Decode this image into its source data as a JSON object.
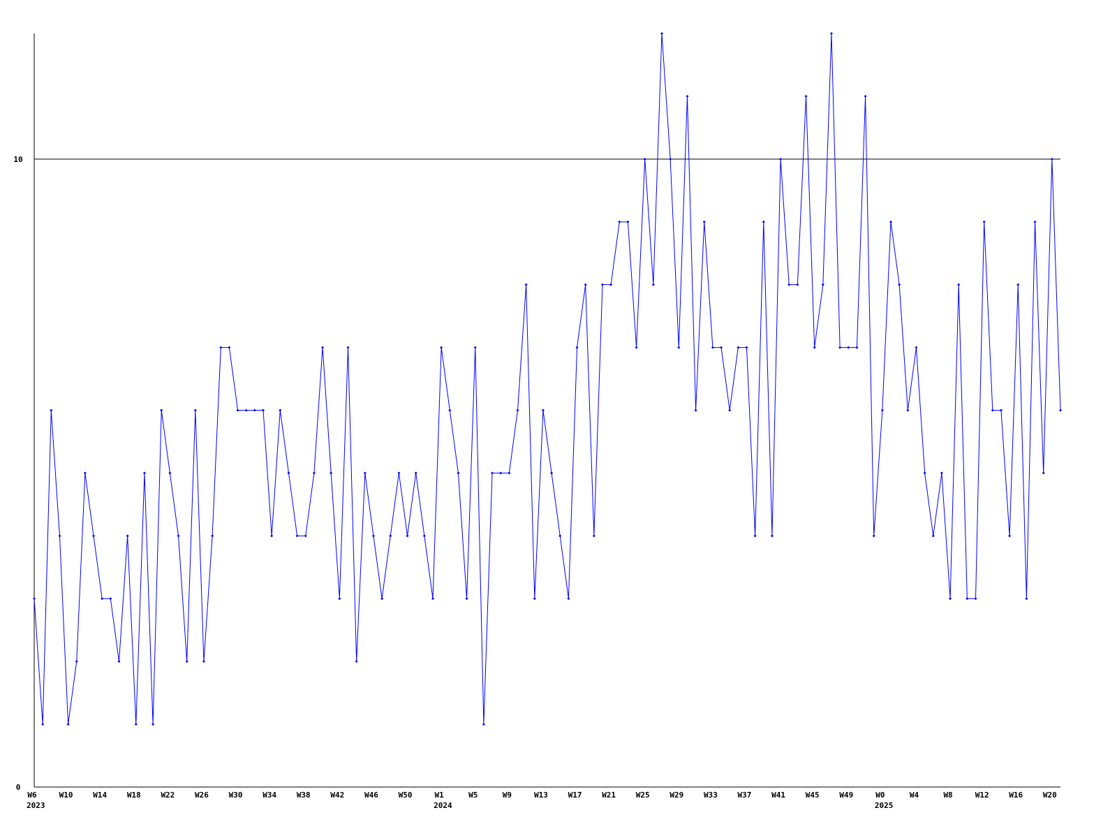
{
  "chart_data": {
    "type": "line",
    "categories": [
      "W6",
      null,
      null,
      null,
      "W10",
      null,
      null,
      null,
      "W14",
      null,
      null,
      null,
      "W18",
      null,
      null,
      null,
      "W22",
      null,
      null,
      null,
      "W26",
      null,
      null,
      null,
      "W30",
      null,
      null,
      null,
      "W34",
      null,
      null,
      null,
      "W38",
      null,
      null,
      null,
      "W42",
      null,
      null,
      null,
      "W46",
      null,
      null,
      null,
      "W50",
      null,
      null,
      null,
      "W1",
      null,
      null,
      null,
      "W5",
      null,
      null,
      null,
      "W9",
      null,
      null,
      null,
      "W13",
      null,
      null,
      null,
      "W17",
      null,
      null,
      null,
      "W21",
      null,
      null,
      null,
      "W25",
      null,
      null,
      null,
      "W29",
      null,
      null,
      null,
      "W33",
      null,
      null,
      null,
      "W37",
      null,
      null,
      null,
      "W41",
      null,
      null,
      null,
      "W45",
      null,
      null,
      null,
      "W49",
      null,
      null,
      null,
      "W0",
      null,
      null,
      null,
      "W4",
      null,
      null,
      null,
      "W8",
      null,
      null,
      null,
      "W12",
      null,
      null,
      null,
      "W16",
      null,
      null,
      null,
      "W20",
      null
    ],
    "category_years": [
      "2023",
      null,
      null,
      null,
      null,
      null,
      null,
      null,
      null,
      null,
      null,
      null,
      null,
      null,
      null,
      null,
      null,
      null,
      null,
      null,
      null,
      null,
      null,
      null,
      null,
      null,
      null,
      null,
      null,
      null,
      null,
      null,
      null,
      null,
      null,
      null,
      null,
      null,
      null,
      null,
      null,
      null,
      null,
      null,
      null,
      null,
      null,
      null,
      "2024",
      null,
      null,
      null,
      null,
      null,
      null,
      null,
      null,
      null,
      null,
      null,
      null,
      null,
      null,
      null,
      null,
      null,
      null,
      null,
      null,
      null,
      null,
      null,
      null,
      null,
      null,
      null,
      null,
      null,
      null,
      null,
      null,
      null,
      null,
      null,
      null,
      null,
      null,
      null,
      null,
      null,
      null,
      null,
      null,
      null,
      null,
      null,
      null,
      null,
      null,
      null,
      "2025",
      null,
      null,
      null,
      null,
      null,
      null,
      null,
      null,
      null,
      null,
      null,
      null,
      null,
      null,
      null,
      null,
      null,
      null,
      null,
      null,
      null
    ],
    "values": [
      3,
      1,
      6,
      4,
      1,
      2,
      5,
      4,
      3,
      3,
      2,
      4,
      1,
      5,
      1,
      6,
      5,
      4,
      2,
      6,
      2,
      4,
      7,
      7,
      6,
      6,
      6,
      6,
      4,
      6,
      5,
      4,
      4,
      5,
      7,
      5,
      3,
      7,
      2,
      5,
      4,
      3,
      4,
      5,
      4,
      5,
      4,
      3,
      7,
      6,
      5,
      3,
      7,
      1,
      5,
      5,
      5,
      6,
      8,
      3,
      6,
      5,
      4,
      3,
      7,
      8,
      4,
      8,
      8,
      9,
      9,
      7,
      10,
      8,
      12,
      10,
      7,
      11,
      6,
      9,
      7,
      7,
      6,
      7,
      7,
      4,
      9,
      4,
      10,
      8,
      8,
      11,
      7,
      8,
      12,
      7,
      7,
      7,
      11,
      4,
      6,
      9,
      8,
      6,
      7,
      5,
      4,
      5,
      3,
      8,
      3,
      3,
      9,
      6,
      6,
      4,
      8,
      3,
      9,
      5,
      10,
      6
    ],
    "color": "#0000ff",
    "ylim": [
      0,
      12
    ],
    "yticks": [
      0,
      10
    ],
    "grid": true
  }
}
